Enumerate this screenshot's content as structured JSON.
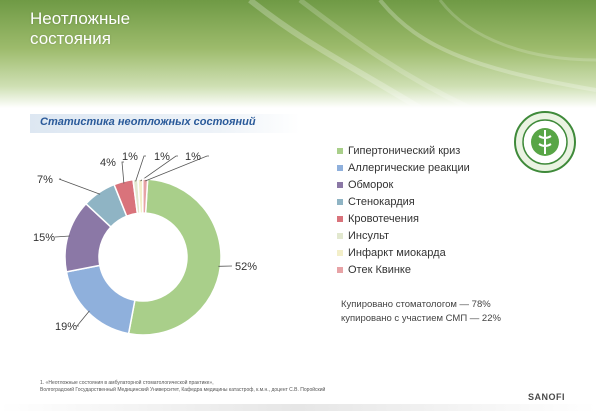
{
  "page": {
    "title_line1": "Неотложные",
    "title_line2": "состояния",
    "subtitle": "Статистика неотложных состояний",
    "note_line1": "Купировано стоматологом — 78%",
    "note_line2": "купировано с участием СМП — 22%",
    "footer_line1": "1. «Неотложные состояния в амбулаторной стоматологической практике»,",
    "footer_line2": "Волгоградский Государственный Медицинский Университет, Кафедра медицины катастроф, к.м.н., доцент С.В. Поройский",
    "brand": "SANOFI"
  },
  "chart_data": {
    "type": "pie",
    "style": "donut",
    "title": "Статистика неотложных состояний",
    "legend_position": "right",
    "categories": [
      "Гипертонический криз",
      "Аллергические реакции",
      "Обморок",
      "Стенокардия",
      "Кровотечения",
      "Инсульт",
      "Инфаркт миокарда",
      "Отек Квинке"
    ],
    "values": [
      52,
      19,
      15,
      7,
      4,
      1,
      1,
      1
    ],
    "value_labels": [
      "52%",
      "19%",
      "15%",
      "7%",
      "4%",
      "1%",
      "1%",
      "1%"
    ],
    "colors": [
      "#a9cf8a",
      "#8fb0dc",
      "#8b78a6",
      "#8fb4c4",
      "#d9737b",
      "#e2e8cf",
      "#f3efc9",
      "#e7a3a6"
    ]
  }
}
